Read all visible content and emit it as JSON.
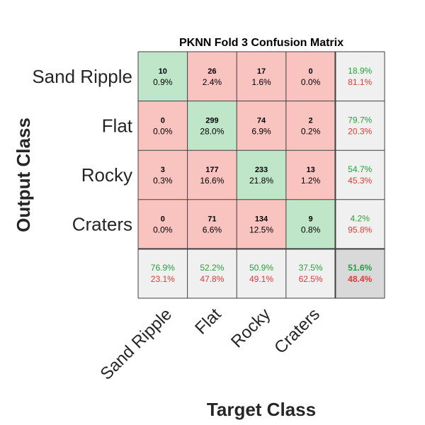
{
  "chart_data": {
    "type": "heatmap",
    "title": "PKNN Fold 3 Confusion Matrix",
    "xlabel": "Target Class",
    "ylabel": "Output Class",
    "classes": [
      "Sand Ripple",
      "Flat",
      "Rocky",
      "Craters"
    ],
    "counts": [
      [
        10,
        26,
        17,
        0
      ],
      [
        0,
        299,
        74,
        2
      ],
      [
        3,
        177,
        233,
        13
      ],
      [
        0,
        71,
        134,
        9
      ]
    ],
    "percents": [
      [
        "0.9%",
        "2.4%",
        "1.6%",
        "0.0%"
      ],
      [
        "0.0%",
        "28.0%",
        "6.9%",
        "0.2%"
      ],
      [
        "0.3%",
        "16.6%",
        "21.8%",
        "1.2%"
      ],
      [
        "0.0%",
        "6.6%",
        "12.5%",
        "0.8%"
      ]
    ],
    "row_summary": [
      {
        "correct": "18.9%",
        "incorrect": "81.1%"
      },
      {
        "correct": "79.7%",
        "incorrect": "20.3%"
      },
      {
        "correct": "54.7%",
        "incorrect": "45.3%"
      },
      {
        "correct": "4.2%",
        "incorrect": "95.8%"
      }
    ],
    "col_summary": [
      {
        "correct": "76.9%",
        "incorrect": "23.1%"
      },
      {
        "correct": "52.2%",
        "incorrect": "47.8%"
      },
      {
        "correct": "50.9%",
        "incorrect": "49.1%"
      },
      {
        "correct": "37.5%",
        "incorrect": "62.5%"
      }
    ],
    "overall": {
      "correct": "51.6%",
      "incorrect": "48.4%"
    },
    "grid": true,
    "legend": "none"
  },
  "colors": {
    "diagonal": "#bfe6c8",
    "off_diagonal": "#f9c3c0",
    "summary": "#f0f0f0",
    "overall": "#d9d9d9",
    "correct_text": "#21a33b",
    "incorrect_text": "#e03a33",
    "border": "#404040"
  }
}
